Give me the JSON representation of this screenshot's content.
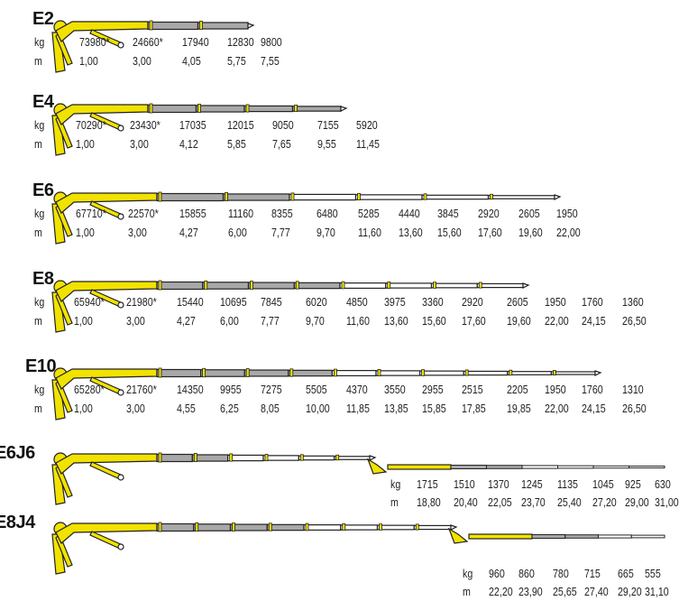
{
  "units": {
    "load": "kg",
    "reach": "m"
  },
  "colors": {
    "boom_yellow": "#f2e200",
    "boom_grey": "#a8a8a8",
    "outline": "#222222",
    "extension": "#ffffff"
  },
  "rows": [
    {
      "model": "E2",
      "extensions": 2,
      "jib": false,
      "loads": [
        "73980*",
        "24660*",
        "17940",
        "12830",
        "9800"
      ],
      "reaches": [
        "1,00",
        "3,00",
        "4,05",
        "5,75",
        "7,55"
      ]
    },
    {
      "model": "E4",
      "extensions": 4,
      "jib": false,
      "loads": [
        "70290*",
        "23430*",
        "17035",
        "12015",
        "9050",
        "7155",
        "5920"
      ],
      "reaches": [
        "1,00",
        "3,00",
        "4,12",
        "5,85",
        "7,65",
        "9,55",
        "11,45"
      ]
    },
    {
      "model": "E6",
      "extensions": 6,
      "jib": false,
      "loads": [
        "67710*",
        "22570*",
        "15855",
        "11160",
        "8355",
        "6480",
        "5285",
        "4440",
        "3845",
        "2920",
        "2605",
        "1950"
      ],
      "reaches": [
        "1,00",
        "3,00",
        "4,27",
        "6,00",
        "7,77",
        "9,70",
        "11,60",
        "13,60",
        "15,60",
        "17,60",
        "19,60",
        "22,00"
      ]
    },
    {
      "model": "E8",
      "extensions": 8,
      "jib": false,
      "loads": [
        "65940*",
        "21980*",
        "15440",
        "10695",
        "7845",
        "6020",
        "4850",
        "3975",
        "3360",
        "2920",
        "2605",
        "1950",
        "1760",
        "1360"
      ],
      "reaches": [
        "1,00",
        "3,00",
        "4,27",
        "6,00",
        "7,77",
        "9,70",
        "11,60",
        "13,60",
        "15,60",
        "17,60",
        "19,60",
        "22,00",
        "24,15",
        "26,50"
      ]
    },
    {
      "model": "E10",
      "extensions": 10,
      "jib": false,
      "loads": [
        "65280*",
        "21760*",
        "14350",
        "9955",
        "7275",
        "5505",
        "4370",
        "3550",
        "2955",
        "2515",
        "2205",
        "1950",
        "1760",
        "1310"
      ],
      "reaches": [
        "1,00",
        "3,00",
        "4,55",
        "6,25",
        "8,05",
        "10,00",
        "11,85",
        "13,85",
        "15,85",
        "17,85",
        "19,85",
        "22,00",
        "24,15",
        "26,50"
      ]
    },
    {
      "model": "E6J6",
      "extensions": 6,
      "jib": true,
      "jib_extensions": 6,
      "loads": [
        "1715",
        "1510",
        "1370",
        "1245",
        "1135",
        "1045",
        "925",
        "630"
      ],
      "reaches": [
        "18,80",
        "20,40",
        "22,05",
        "23,70",
        "25,40",
        "27,20",
        "29,00",
        "31,00"
      ]
    },
    {
      "model": "E8J4",
      "extensions": 8,
      "jib": true,
      "jib_extensions": 4,
      "loads": [
        "960",
        "860",
        "780",
        "715",
        "665",
        "555"
      ],
      "reaches": [
        "22,20",
        "23,90",
        "25,65",
        "27,40",
        "29,20",
        "31,10"
      ]
    }
  ]
}
